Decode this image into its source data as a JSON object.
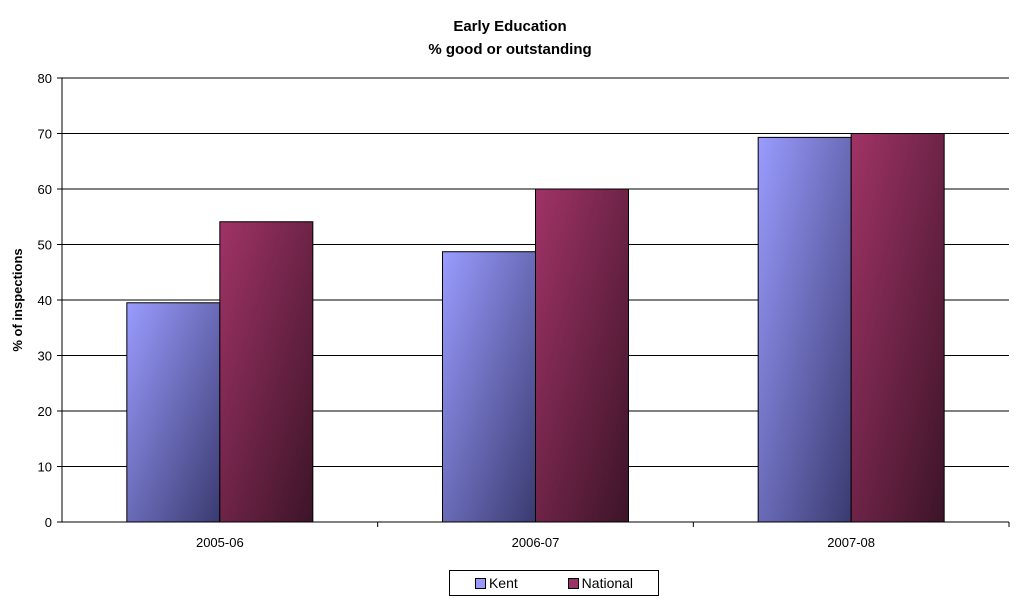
{
  "chart_data": {
    "type": "bar",
    "title": "Early Education",
    "subtitle": "% good or outstanding",
    "ylabel": "% of inspections",
    "xlabel": "",
    "categories": [
      "2005-06",
      "2006-07",
      "2007-08"
    ],
    "series": [
      {
        "name": "Kent",
        "values": [
          39.5,
          48.7,
          69.3
        ],
        "color": "#9999ff"
      },
      {
        "name": "National",
        "values": [
          54.1,
          60,
          70
        ],
        "color": "#993366"
      }
    ],
    "ylim": [
      0,
      80
    ],
    "yticks": [
      0,
      10,
      20,
      30,
      40,
      50,
      60,
      70,
      80
    ],
    "grid": true,
    "legend_position": "bottom"
  }
}
